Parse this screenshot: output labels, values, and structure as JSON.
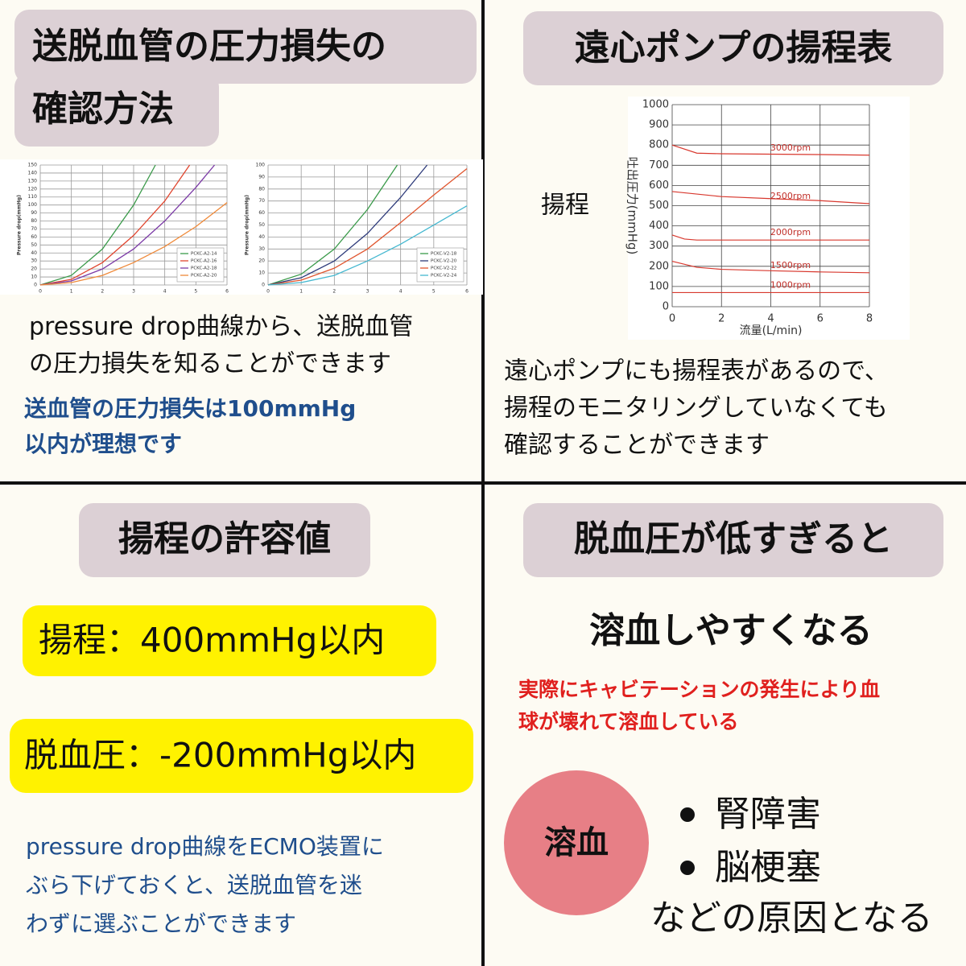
{
  "panels": {
    "q1": {
      "title_lines": [
        "送脱血管の圧力損失の",
        "確認方法"
      ],
      "text_lines": [
        "pressure drop曲線から、送脱血管",
        "の圧力損失を知ることができます"
      ],
      "note_lines": [
        "送血管の圧力損失は100mmHg",
        "以内が理想です"
      ]
    },
    "q2": {
      "title": "遠心ポンプの揚程表",
      "side_label": "揚程",
      "text_lines": [
        "遠心ポンプにも揚程表があるので、",
        "揚程のモニタリングしていなくても",
        "確認することができます"
      ]
    },
    "q3": {
      "title": "揚程の許容値",
      "limits": [
        "揚程：400mmHg以内",
        "脱血圧：-200mmHg以内"
      ],
      "note_lines": [
        "pressure drop曲線をECMO装置に",
        "ぶら下げておくと、送脱血管を迷",
        "わずに選ぶことができます"
      ]
    },
    "q4": {
      "title": "脱血圧が低すぎると",
      "headline": "溶血しやすくなる",
      "note_lines": [
        "実際にキャビテーションの発生により血",
        "球が壊れて溶血している"
      ],
      "circle_label": "溶血",
      "bullets": [
        "腎障害",
        "脳梗塞"
      ],
      "footer": "などの原因となる"
    }
  },
  "chart_data": [
    {
      "type": "line",
      "y_label": "Pressure drop(mmHg)",
      "xlim": [
        0,
        6
      ],
      "xticks": [
        0,
        1,
        2,
        3,
        4,
        5,
        6
      ],
      "ylim": [
        0,
        150
      ],
      "yticks": [
        0,
        10,
        20,
        30,
        40,
        50,
        60,
        70,
        80,
        90,
        100,
        110,
        120,
        130,
        140,
        150
      ],
      "grid": true,
      "legend": "lower right",
      "series": [
        {
          "name": "PCKC-A2-14",
          "color": "#3a9a4a",
          "x": [
            0,
            1,
            2,
            3,
            3.7
          ],
          "values": [
            0,
            12,
            45,
            100,
            150
          ]
        },
        {
          "name": "PCKC-A2-16",
          "color": "#e0452e",
          "x": [
            0,
            1,
            2,
            3,
            4,
            4.8
          ],
          "values": [
            0,
            7,
            28,
            62,
            105,
            150
          ]
        },
        {
          "name": "PCKC-A2-18",
          "color": "#7b3aa6",
          "x": [
            0,
            1,
            2,
            3,
            4,
            5,
            5.6
          ],
          "values": [
            0,
            5,
            20,
            45,
            80,
            122,
            150
          ]
        },
        {
          "name": "PCKC-A2-20",
          "color": "#ef8a3a",
          "x": [
            0,
            1,
            2,
            3,
            4,
            5,
            6
          ],
          "values": [
            0,
            3,
            12,
            28,
            48,
            73,
            103
          ]
        }
      ]
    },
    {
      "type": "line",
      "y_label": "Pressure drop(mmHg)",
      "xlim": [
        0,
        6
      ],
      "xticks": [
        0,
        1,
        2,
        3,
        4,
        5,
        6
      ],
      "ylim": [
        0,
        100
      ],
      "yticks": [
        0,
        10,
        20,
        30,
        40,
        50,
        60,
        70,
        80,
        90,
        100
      ],
      "grid": true,
      "legend": "lower right",
      "series": [
        {
          "name": "PCKC-V2-18",
          "color": "#3a9a4a",
          "x": [
            0,
            1,
            2,
            3,
            3.9
          ],
          "values": [
            0,
            9,
            30,
            63,
            100
          ]
        },
        {
          "name": "PCKC-V2-20",
          "color": "#2d3a7a",
          "x": [
            0,
            1,
            2,
            3,
            4,
            4.8
          ],
          "values": [
            0,
            6,
            20,
            43,
            73,
            100
          ]
        },
        {
          "name": "PCKC-V2-22",
          "color": "#e0552e",
          "x": [
            0,
            1,
            2,
            3,
            4,
            5,
            6
          ],
          "values": [
            0,
            4,
            14,
            30,
            52,
            75,
            97
          ]
        },
        {
          "name": "PCKC-V2-24",
          "color": "#45b8d0",
          "x": [
            0,
            1,
            2,
            3,
            4,
            5,
            6
          ],
          "values": [
            0,
            2,
            8,
            20,
            34,
            50,
            66
          ]
        }
      ]
    },
    {
      "type": "line",
      "y_label": "吐出圧力(mmHg)",
      "x_label": "流量(L/min)",
      "xlim": [
        0,
        8
      ],
      "xticks": [
        0,
        2,
        4,
        6,
        8
      ],
      "ylim": [
        0,
        1000
      ],
      "yticks": [
        0,
        100,
        200,
        300,
        400,
        500,
        600,
        700,
        800,
        900,
        1000
      ],
      "grid": true,
      "legend": "inline",
      "series": [
        {
          "name": "3000rpm",
          "color": "#d8382e",
          "x": [
            0,
            1,
            2,
            4,
            6,
            8
          ],
          "values": [
            800,
            760,
            757,
            755,
            753,
            750
          ]
        },
        {
          "name": "2500rpm",
          "color": "#d8382e",
          "x": [
            0,
            2,
            4,
            6,
            8
          ],
          "values": [
            570,
            545,
            535,
            525,
            510
          ]
        },
        {
          "name": "2000rpm",
          "color": "#d8382e",
          "x": [
            0,
            0.5,
            1,
            4,
            8
          ],
          "values": [
            355,
            335,
            330,
            330,
            330
          ]
        },
        {
          "name": "1500rpm",
          "color": "#d8382e",
          "x": [
            0,
            1,
            2,
            4,
            6,
            8
          ],
          "values": [
            225,
            195,
            185,
            178,
            172,
            168
          ]
        },
        {
          "name": "1000rpm",
          "color": "#d8382e",
          "x": [
            0,
            8
          ],
          "values": [
            70,
            70
          ]
        }
      ]
    }
  ]
}
